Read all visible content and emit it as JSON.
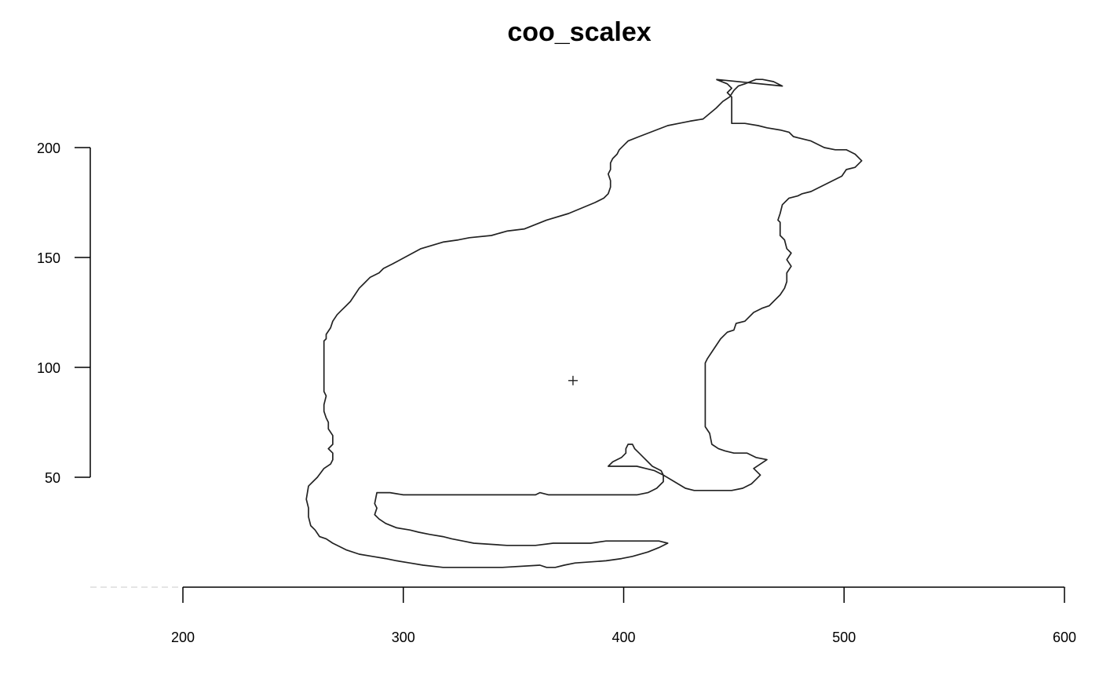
{
  "chart_data": {
    "type": "line",
    "title": "coo_scalex",
    "xlabel": "",
    "ylabel": "",
    "xlim": [
      158,
      600
    ],
    "ylim": [
      0,
      230
    ],
    "xticks": [
      200,
      300,
      400,
      500,
      600
    ],
    "yticks": [
      50,
      100,
      150,
      200
    ],
    "grid": false,
    "centroid": {
      "x": 377,
      "y": 94
    },
    "baseline_y": 0,
    "series": [
      {
        "points": [
          [
            442,
            231
          ],
          [
            447,
            229
          ],
          [
            449,
            227
          ],
          [
            447,
            225
          ],
          [
            449,
            223
          ],
          [
            449,
            219
          ],
          [
            449,
            211
          ],
          [
            455,
            211
          ],
          [
            461,
            210
          ],
          [
            465,
            209
          ],
          [
            471,
            208
          ],
          [
            475,
            207
          ],
          [
            477,
            205
          ],
          [
            485,
            203
          ],
          [
            491,
            200
          ],
          [
            496,
            199
          ],
          [
            501,
            199
          ],
          [
            505,
            197
          ],
          [
            508,
            194
          ],
          [
            505,
            191
          ],
          [
            501,
            190
          ],
          [
            499,
            187
          ],
          [
            485,
            180
          ],
          [
            481,
            179
          ],
          [
            479,
            178
          ],
          [
            475,
            177
          ],
          [
            472,
            174
          ],
          [
            471,
            170
          ],
          [
            470,
            167
          ],
          [
            471,
            166
          ],
          [
            471,
            163
          ],
          [
            471,
            160
          ],
          [
            473,
            158
          ],
          [
            474,
            154
          ],
          [
            476,
            152
          ],
          [
            474,
            149
          ],
          [
            476,
            146
          ],
          [
            474,
            143
          ],
          [
            474,
            139
          ],
          [
            473,
            136
          ],
          [
            471,
            133
          ],
          [
            468,
            130
          ],
          [
            466,
            128
          ],
          [
            463,
            127
          ],
          [
            459,
            125
          ],
          [
            455,
            121
          ],
          [
            451,
            120
          ],
          [
            450,
            117
          ],
          [
            447,
            116
          ],
          [
            444,
            113
          ],
          [
            442,
            110
          ],
          [
            440,
            107
          ],
          [
            438,
            104
          ],
          [
            437,
            102
          ],
          [
            437,
            91
          ],
          [
            437,
            80
          ],
          [
            437,
            73
          ],
          [
            439,
            70
          ],
          [
            440,
            65
          ],
          [
            443,
            63
          ],
          [
            446,
            62
          ],
          [
            450,
            61
          ],
          [
            456,
            61
          ],
          [
            460,
            59
          ],
          [
            465,
            58
          ],
          [
            462,
            56
          ],
          [
            459,
            54
          ],
          [
            462,
            51
          ],
          [
            460,
            49
          ],
          [
            458,
            47
          ],
          [
            454,
            45
          ],
          [
            449,
            44
          ],
          [
            443,
            44
          ],
          [
            432,
            44
          ],
          [
            428,
            45
          ],
          [
            423,
            48
          ],
          [
            418,
            51
          ],
          [
            414,
            53
          ],
          [
            410,
            54
          ],
          [
            406,
            55
          ],
          [
            401,
            55
          ],
          [
            397,
            55
          ],
          [
            393,
            55
          ],
          [
            395,
            57
          ],
          [
            399,
            59
          ],
          [
            401,
            61
          ],
          [
            401,
            63
          ],
          [
            402,
            65
          ],
          [
            404,
            65
          ],
          [
            405,
            63
          ],
          [
            407,
            61
          ],
          [
            409,
            59
          ],
          [
            411,
            57
          ],
          [
            413,
            55
          ],
          [
            417,
            53
          ],
          [
            418,
            51
          ],
          [
            418,
            48
          ],
          [
            415,
            45
          ],
          [
            411,
            43
          ],
          [
            406,
            42
          ],
          [
            394,
            42
          ],
          [
            381,
            42
          ],
          [
            366,
            42
          ],
          [
            362,
            43
          ],
          [
            360,
            42
          ],
          [
            347,
            42
          ],
          [
            317,
            42
          ],
          [
            300,
            42
          ],
          [
            294,
            43
          ],
          [
            288,
            43
          ],
          [
            287,
            38
          ],
          [
            288,
            36
          ],
          [
            287,
            33
          ],
          [
            289,
            31
          ],
          [
            292,
            29
          ],
          [
            297,
            27
          ],
          [
            303,
            26
          ],
          [
            307,
            25
          ],
          [
            312,
            24
          ],
          [
            318,
            23
          ],
          [
            322,
            22
          ],
          [
            327,
            21
          ],
          [
            332,
            20
          ],
          [
            347,
            19
          ],
          [
            360,
            19
          ],
          [
            368,
            20
          ],
          [
            385,
            20
          ],
          [
            392,
            21
          ],
          [
            402,
            21
          ],
          [
            416,
            21
          ],
          [
            420,
            20
          ],
          [
            416,
            18
          ],
          [
            411,
            16
          ],
          [
            404,
            14
          ],
          [
            399,
            13
          ],
          [
            392,
            12
          ],
          [
            378,
            11
          ],
          [
            373,
            10
          ],
          [
            369,
            9
          ],
          [
            365,
            9
          ],
          [
            362,
            10
          ],
          [
            345,
            9
          ],
          [
            331,
            9
          ],
          [
            322,
            9
          ],
          [
            318,
            9
          ],
          [
            309,
            10
          ],
          [
            303,
            11
          ],
          [
            297,
            12
          ],
          [
            292,
            13
          ],
          [
            286,
            14
          ],
          [
            280,
            15
          ],
          [
            274,
            17
          ],
          [
            270,
            19
          ],
          [
            268,
            20
          ],
          [
            265,
            22
          ],
          [
            262,
            23
          ],
          [
            260,
            26
          ],
          [
            258,
            28
          ],
          [
            257,
            32
          ],
          [
            257,
            36
          ],
          [
            256,
            40
          ],
          [
            257,
            46
          ],
          [
            259,
            48
          ],
          [
            261,
            50
          ],
          [
            264,
            54
          ],
          [
            267,
            56
          ],
          [
            268,
            58
          ],
          [
            268,
            61
          ],
          [
            266,
            63
          ],
          [
            268,
            65
          ],
          [
            268,
            69
          ],
          [
            266,
            72
          ],
          [
            266,
            75
          ],
          [
            265,
            77
          ],
          [
            264,
            80
          ],
          [
            264,
            83
          ],
          [
            265,
            87
          ],
          [
            264,
            89
          ],
          [
            264,
            98
          ],
          [
            264,
            106
          ],
          [
            264,
            112
          ],
          [
            265,
            113
          ],
          [
            265,
            115
          ],
          [
            267,
            118
          ],
          [
            268,
            121
          ],
          [
            270,
            124
          ],
          [
            272,
            126
          ],
          [
            274,
            128
          ],
          [
            276,
            130
          ],
          [
            278,
            133
          ],
          [
            280,
            136
          ],
          [
            282,
            138
          ],
          [
            285,
            141
          ],
          [
            289,
            143
          ],
          [
            291,
            145
          ],
          [
            295,
            147
          ],
          [
            308,
            154
          ],
          [
            318,
            157
          ],
          [
            325,
            158
          ],
          [
            330,
            159
          ],
          [
            340,
            160
          ],
          [
            347,
            162
          ],
          [
            355,
            163
          ],
          [
            365,
            167
          ],
          [
            375,
            170
          ],
          [
            387,
            175
          ],
          [
            391,
            177
          ],
          [
            393,
            179
          ],
          [
            394,
            182
          ],
          [
            394,
            185
          ],
          [
            393,
            188
          ],
          [
            394,
            190
          ],
          [
            394,
            193
          ],
          [
            395,
            195
          ],
          [
            397,
            197
          ],
          [
            398,
            199
          ],
          [
            400,
            201
          ],
          [
            402,
            203
          ],
          [
            407,
            205
          ],
          [
            420,
            210
          ],
          [
            425,
            211
          ],
          [
            430,
            212
          ],
          [
            436,
            213
          ],
          [
            442,
            218
          ],
          [
            445,
            221
          ],
          [
            448,
            223
          ],
          [
            450,
            226
          ],
          [
            452,
            228
          ],
          [
            455,
            229
          ],
          [
            460,
            231
          ],
          [
            463,
            231
          ],
          [
            468,
            230
          ],
          [
            472,
            228
          ],
          [
            442,
            231
          ]
        ]
      }
    ]
  }
}
